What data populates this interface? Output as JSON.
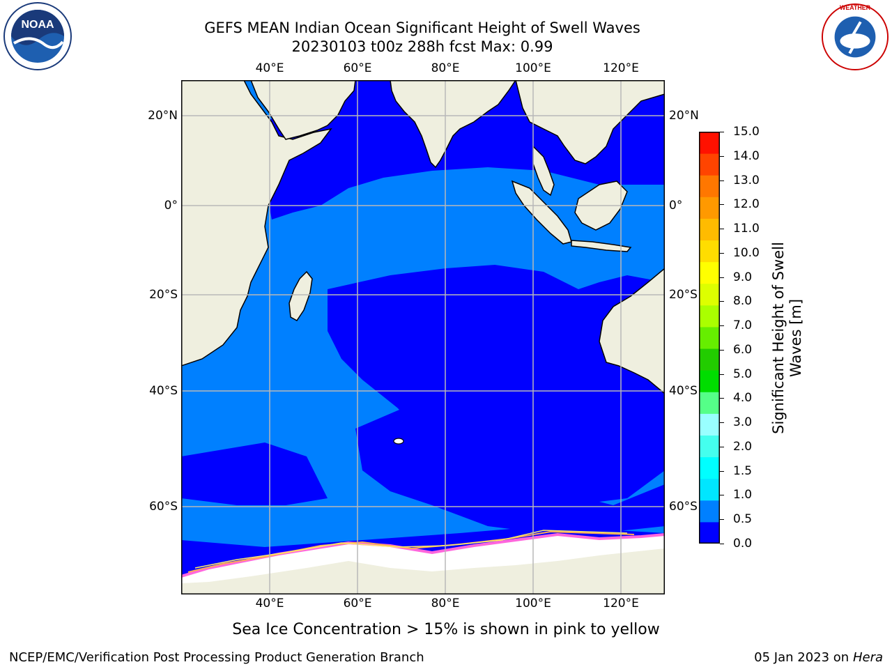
{
  "title": {
    "line1": "GEFS MEAN Indian Ocean Significant Height of Swell Waves",
    "line2": "20230103 t00z 288h fcst   Max: 0.99"
  },
  "map": {
    "lon_ticks": [
      "40°E",
      "60°E",
      "80°E",
      "100°E",
      "120°E"
    ],
    "lat_ticks_left": [
      "20°N",
      "0°",
      "20°S",
      "40°S",
      "60°S"
    ],
    "lat_ticks_right": [
      "20°N",
      "0°",
      "20°S",
      "40°S",
      "60°S"
    ],
    "grid": true,
    "colors": {
      "land": "#efefdf",
      "coast": "#000000",
      "grid": "#b8b8b8",
      "swell_0_0_5": "#0000ff",
      "swell_0_5_1": "#0080ff",
      "sea_ice_white": "#ffffff",
      "sea_ice_pink": "#ff66dd",
      "sea_ice_orange": "#ffaa55",
      "sea_ice_yellow": "#ffee66"
    }
  },
  "colorbar": {
    "title_line1": "Significant Height of Swell",
    "title_line2": "Waves [m]",
    "labels": [
      "15.0",
      "14.0",
      "13.0",
      "12.0",
      "11.0",
      "10.0",
      "9.0",
      "8.0",
      "7.0",
      "6.0",
      "5.0",
      "4.0",
      "3.0",
      "2.0",
      "1.5",
      "1.0",
      "0.5",
      "0.0"
    ],
    "colors": [
      "#0000ff",
      "#0080ff",
      "#00e6ff",
      "#00ffff",
      "#44ffee",
      "#99ffff",
      "#55ff88",
      "#00dd00",
      "#22cc00",
      "#66ee00",
      "#aaff00",
      "#ddff00",
      "#ffff00",
      "#ffdd00",
      "#ffbb00",
      "#ff9900",
      "#ff7700",
      "#ff4400",
      "#ff1100"
    ]
  },
  "caption": "Sea Ice Concentration > 15% is shown in pink to yellow",
  "footer": {
    "left": "NCEP/EMC/Verification Post Processing Product Generation Branch",
    "right_date": "05 Jan 2023 on ",
    "right_host": "Hera"
  },
  "logos": {
    "noaa": {
      "text": "NOAA",
      "icon": "noaa-logo-icon"
    },
    "nws": {
      "text": "NATIONAL WEATHER SERVICE",
      "icon": "nws-logo-icon"
    }
  }
}
